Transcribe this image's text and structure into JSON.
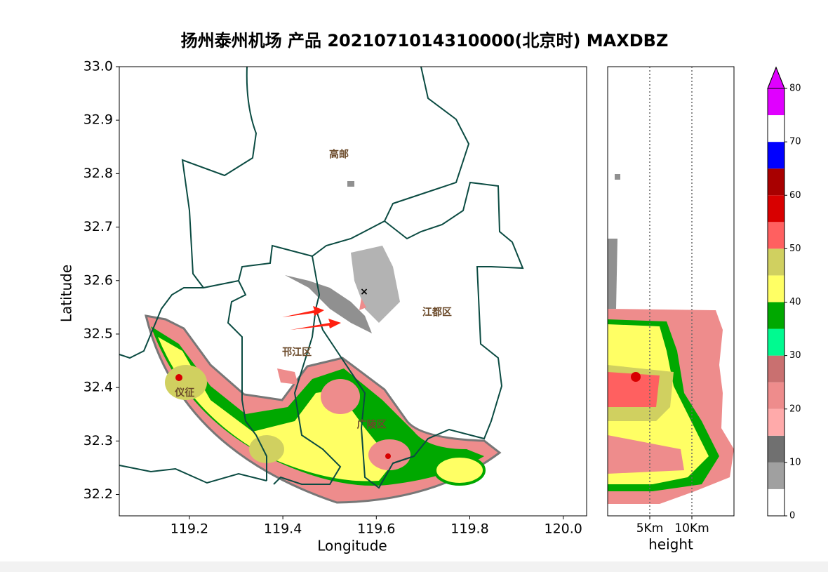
{
  "chart_data": [
    {
      "type": "map",
      "title": "扬州泰州机场 产品  2021071014310000(北京时)  MAXDBZ",
      "xlabel": "Longitude",
      "ylabel": "Latitude",
      "xlim": [
        119.05,
        120.05
      ],
      "ylim": [
        32.16,
        33.0
      ],
      "xticks": [
        119.2,
        119.4,
        119.6,
        119.8,
        {
          "value": 120,
          "label": "120.0"
        }
      ],
      "yticks": [
        32.2,
        32.3,
        32.4,
        32.5,
        32.6,
        32.7,
        32.8,
        32.9,
        {
          "value": 33,
          "label": "33.0"
        }
      ],
      "places": [
        {
          "label": "高邮",
          "lon": 119.52,
          "lat": 32.835
        },
        {
          "label": "江都区",
          "lon": 119.73,
          "lat": 32.54
        },
        {
          "label": "邗江区",
          "lon": 119.43,
          "lat": 32.465
        },
        {
          "label": "仪征",
          "lon": 119.19,
          "lat": 32.39
        },
        {
          "label": "广陵区",
          "lon": 119.59,
          "lat": 32.33
        }
      ]
    },
    {
      "type": "profile",
      "xlabel": "height",
      "xlim": [
        0,
        15
      ],
      "ylim": [
        32.16,
        33.0
      ],
      "xticks": [
        {
          "value": 5,
          "label": "5Km"
        },
        {
          "value": 10,
          "label": "10Km"
        }
      ],
      "grid": true
    },
    {
      "type": "colorbar",
      "bounds": [
        0,
        5,
        10,
        15,
        20,
        25,
        30,
        35,
        40,
        45,
        50,
        55,
        60,
        65,
        70,
        75,
        80
      ],
      "colors": [
        "#ffffff",
        "#a0a0a0",
        "#707070",
        "#ffaaaa",
        "#ee8c8c",
        "#c97070",
        "#00fa90",
        "#00a800",
        "#ffff64",
        "#d0d060",
        "#ff6060",
        "#d80000",
        "#a80000",
        "#0000ff",
        "#ffffff",
        "#e000ff"
      ],
      "extend_color": "#e000ff",
      "ticks": [
        0,
        10,
        20,
        30,
        40,
        50,
        60,
        70,
        80
      ]
    }
  ]
}
